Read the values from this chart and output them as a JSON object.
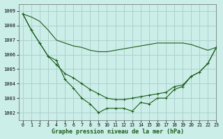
{
  "title": "Graphe pression niveau de la mer (hPa)",
  "background_color": "#cceee8",
  "grid_color": "#aacccc",
  "line_color": "#1a5c1a",
  "marker_color": "#1a5c1a",
  "xlim": [
    -0.5,
    23
  ],
  "ylim": [
    1001.5,
    1009.5
  ],
  "yticks": [
    1002,
    1003,
    1004,
    1005,
    1006,
    1007,
    1008,
    1009
  ],
  "xticks": [
    0,
    1,
    2,
    3,
    4,
    5,
    6,
    7,
    8,
    9,
    10,
    11,
    12,
    13,
    14,
    15,
    16,
    17,
    18,
    19,
    20,
    21,
    22,
    23
  ],
  "series": [
    {
      "y": [
        1008.8,
        1008.6,
        1008.3,
        1007.7,
        1007.0,
        1006.8,
        1006.6,
        1006.5,
        1006.3,
        1006.2,
        1006.2,
        1006.3,
        1006.4,
        1006.5,
        1006.6,
        1006.7,
        1006.8,
        1006.8,
        1006.8,
        1006.8,
        1006.7,
        1006.5,
        1006.3,
        1006.5
      ],
      "marker": null
    },
    {
      "y": [
        1008.8,
        1007.7,
        1006.8,
        1005.9,
        1005.3,
        1004.7,
        1004.4,
        1004.0,
        1003.6,
        1003.3,
        1003.0,
        1002.9,
        1002.9,
        1003.0,
        1003.1,
        1003.2,
        1003.3,
        1003.4,
        1003.8,
        1003.9,
        1004.5,
        1004.8,
        1005.4,
        1006.5
      ],
      "marker": "+"
    },
    {
      "y": [
        1008.8,
        1007.7,
        1006.8,
        1005.9,
        1005.6,
        1004.3,
        1003.7,
        1003.0,
        1002.6,
        1002.0,
        1002.3,
        1002.3,
        1002.3,
        1002.1,
        1002.7,
        1002.6,
        1003.0,
        1003.0,
        1003.6,
        1003.8,
        1004.5,
        1004.8,
        1005.4,
        1006.5
      ],
      "marker": "+"
    }
  ]
}
